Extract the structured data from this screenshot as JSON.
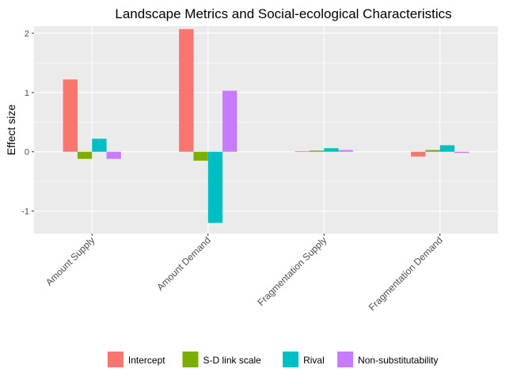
{
  "chart_data": {
    "type": "bar",
    "title": "Landscape Metrics and Social-ecological Characteristics",
    "xlabel": "",
    "ylabel": "Effect size",
    "categories": [
      "Amount Supply",
      "Amount Demand",
      "Fragmentation Supply",
      "Fragmentation Demand"
    ],
    "ylim": [
      -1.38,
      2.12
    ],
    "yticks": [
      -1,
      0,
      1,
      2
    ],
    "ytick_labels": [
      "-1",
      "0",
      "1",
      "2"
    ],
    "grid": true,
    "legend_position": "bottom",
    "series": [
      {
        "name": "Intercept",
        "color": "#F8766D",
        "values": [
          1.22,
          2.07,
          0.01,
          -0.08
        ]
      },
      {
        "name": "S-D link scale",
        "color": "#7CAE00",
        "values": [
          -0.12,
          -0.15,
          0.02,
          0.03
        ]
      },
      {
        "name": "Rival",
        "color": "#00BFC4",
        "values": [
          0.22,
          -1.2,
          0.06,
          0.11
        ]
      },
      {
        "name": "Non-substitutability",
        "color": "#C77CFF",
        "values": [
          -0.12,
          1.03,
          0.03,
          -0.02
        ]
      }
    ]
  }
}
